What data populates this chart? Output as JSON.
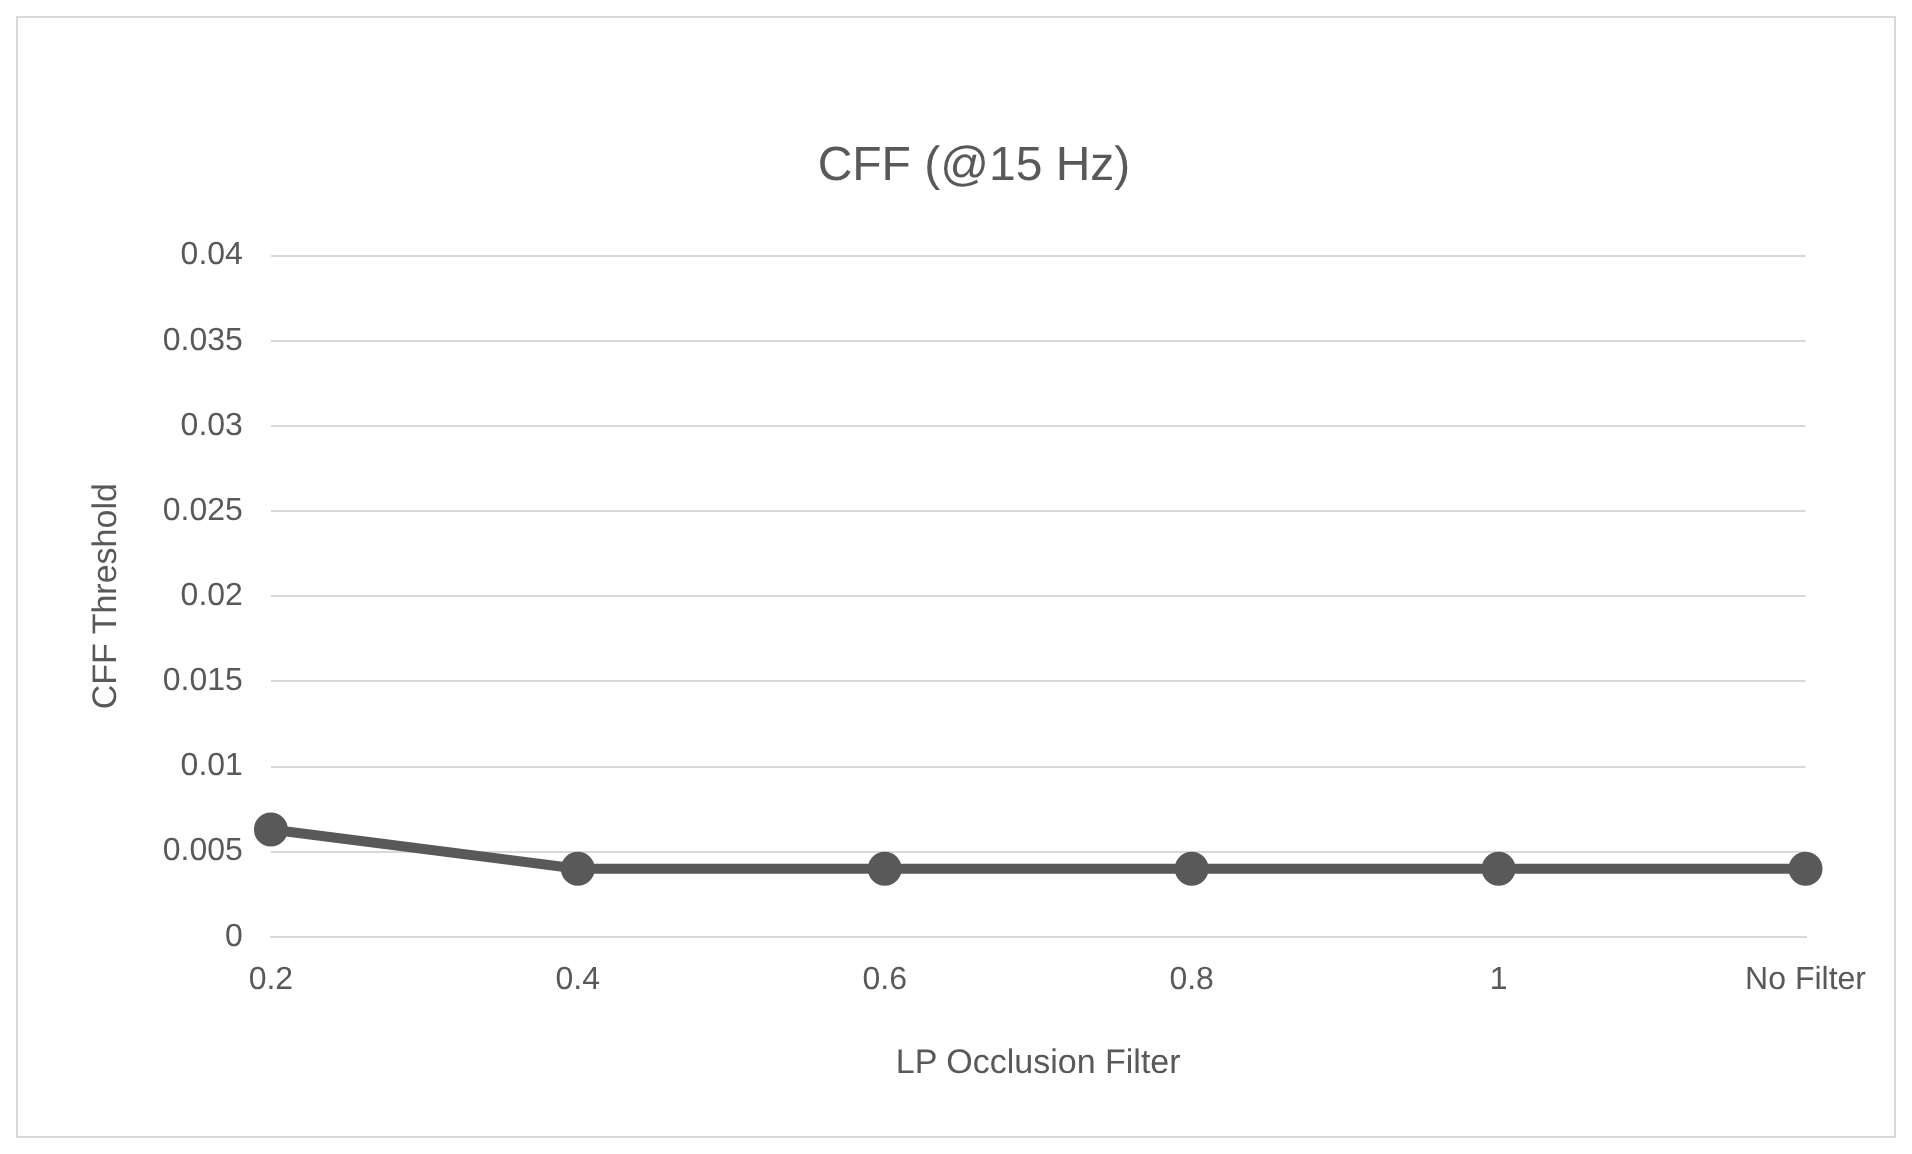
{
  "chart_data": {
    "type": "line",
    "title": "CFF (@15 Hz)",
    "xlabel": "LP Occlusion Filter",
    "ylabel": "CFF Threshold",
    "categories": [
      "0.2",
      "0.4",
      "0.6",
      "0.8",
      "1",
      "No Filter"
    ],
    "series": [
      {
        "color": "#595959",
        "values": [
          0.0063,
          0.004,
          0.004,
          0.004,
          0.004,
          0.004
        ]
      }
    ],
    "ylim": [
      0,
      0.04
    ],
    "yticks": [
      0,
      0.005,
      0.01,
      0.015,
      0.02,
      0.025,
      0.03,
      0.035,
      0.04
    ],
    "grid": "y",
    "legend": false,
    "marker": "circle",
    "line_style": "solid"
  }
}
